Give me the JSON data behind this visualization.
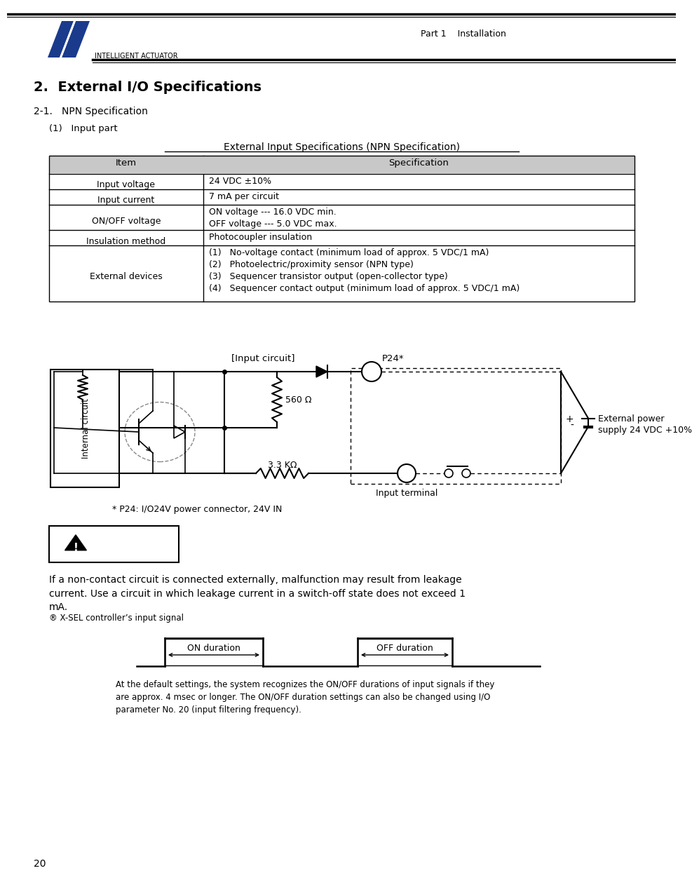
{
  "page_title": "Part 1    Installation",
  "logo_text": "INTELLIGENT ACTUATOR",
  "section_title": "2.  External I/O Specifications",
  "subsection_title": "2-1.   NPN Specification",
  "input_part": "(1)   Input part",
  "table_title": "External Input Specifications (NPN Specification)",
  "table_headers": [
    "Item",
    "Specification"
  ],
  "table_rows": [
    [
      "Input voltage",
      "24 VDC ±10%"
    ],
    [
      "Input current",
      "7 mA per circuit"
    ],
    [
      "ON/OFF voltage",
      "ON voltage --- 16.0 VDC min.\nOFF voltage --- 5.0 VDC max."
    ],
    [
      "Insulation method",
      "Photocoupler insulation"
    ],
    [
      "External devices",
      "(1)   No-voltage contact (minimum load of approx. 5 VDC/1 mA)\n(2)   Photoelectric/proximity sensor (NPN type)\n(3)   Sequencer transistor output (open-collector type)\n(4)   Sequencer contact output (minimum load of approx. 5 VDC/1 mA)"
    ]
  ],
  "circuit_label": "[Input circuit]",
  "p24_label": "P24*",
  "internal_circuit_label": "Internal circuit",
  "r1_label": "560 Ω",
  "r2_label": "3.3 KΩ",
  "input_terminal_label": "Input terminal",
  "ext_power_label": "External power\nsupply 24 VDC +10%",
  "p24_note": "* P24: I/O24V power connector, 24V IN",
  "caution_text": "If a non-contact circuit is connected externally, malfunction may result from leakage\ncurrent. Use a circuit in which leakage current in a switch-off state does not exceed 1\nmA.",
  "xsel_note": "® X-SEL controller’s input signal",
  "on_duration": "ON duration",
  "off_duration": "OFF duration",
  "timing_note": "At the default settings, the system recognizes the ON/OFF durations of input signals if they\nare approx. 4 msec or longer. The ON/OFF duration settings can also be changed using I/O\nparameter No. 20 (input filtering frequency).",
  "page_number": "20",
  "bg_color": "#ffffff",
  "header_bg": "#c8c8c8",
  "navy_color": "#1a3a8c"
}
